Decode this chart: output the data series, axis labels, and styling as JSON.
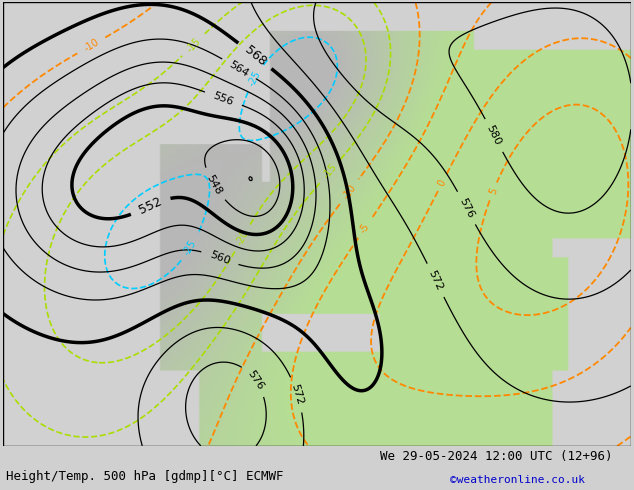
{
  "title_left": "Height/Temp. 500 hPa [gdmp][°C] ECMWF",
  "title_right": "We 29-05-2024 12:00 UTC (12+96)",
  "credit": "©weatheronline.co.uk",
  "title_fontsize": 9,
  "credit_fontsize": 8,
  "credit_color": "#0000cc"
}
